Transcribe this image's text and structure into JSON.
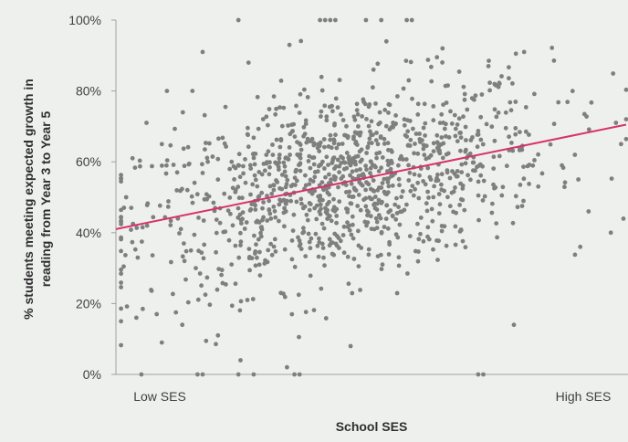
{
  "chart_data": {
    "type": "scatter",
    "title": "",
    "xlabel": "School SES",
    "ylabel_lines": [
      "% students meeting expected growth in",
      "reading from Year 3 to Year 5"
    ],
    "x_tick_labels": [
      "Low SES",
      "High SES"
    ],
    "y_ticks": [
      {
        "value": 0,
        "label": "0%"
      },
      {
        "value": 20,
        "label": "20%"
      },
      {
        "value": 40,
        "label": "40%"
      },
      {
        "value": 60,
        "label": "60%"
      },
      {
        "value": 80,
        "label": "80%"
      },
      {
        "value": 100,
        "label": "100%"
      }
    ],
    "xlim": [
      0,
      100
    ],
    "ylim": [
      0,
      100
    ],
    "grid": false,
    "point_color": "#7f7f7f",
    "trend_color": "#d6336c",
    "background": "#eef0ee",
    "trendline": {
      "x": [
        0,
        100
      ],
      "y": [
        41,
        70.5
      ]
    },
    "points_generated": {
      "count": 1150,
      "note_hidden": true,
      "x_center": 45,
      "x_spread": 20,
      "y_intercept": 41,
      "y_slope": 0.29,
      "y_noise": 13
    },
    "points": [
      [
        1,
        15
      ],
      [
        4,
        16
      ],
      [
        5,
        0
      ],
      [
        16,
        0
      ],
      [
        17,
        0
      ],
      [
        24,
        0
      ],
      [
        27,
        0
      ],
      [
        35,
        0
      ],
      [
        36,
        0
      ],
      [
        71,
        0
      ],
      [
        72,
        0
      ],
      [
        24,
        100
      ],
      [
        40,
        100
      ],
      [
        41,
        100
      ],
      [
        42,
        100
      ],
      [
        43,
        100
      ],
      [
        49,
        100
      ],
      [
        52,
        100
      ],
      [
        57,
        100
      ],
      [
        58,
        100
      ],
      [
        17,
        91
      ],
      [
        26,
        88
      ],
      [
        53,
        94
      ],
      [
        64,
        92
      ],
      [
        73,
        87
      ],
      [
        80,
        91
      ],
      [
        34,
        93
      ],
      [
        9,
        9
      ],
      [
        13,
        14
      ],
      [
        46,
        8
      ],
      [
        8,
        17
      ],
      [
        20,
        11
      ],
      [
        78,
        14
      ],
      [
        91,
        36
      ],
      [
        97,
        40
      ],
      [
        99,
        65
      ],
      [
        98,
        71
      ],
      [
        100,
        72
      ],
      [
        2,
        50
      ],
      [
        3,
        47
      ],
      [
        6,
        71
      ],
      [
        9,
        65
      ],
      [
        10,
        80
      ],
      [
        12,
        57
      ],
      [
        14,
        52
      ],
      [
        15,
        80
      ],
      [
        18,
        60
      ],
      [
        20,
        55
      ]
    ]
  }
}
